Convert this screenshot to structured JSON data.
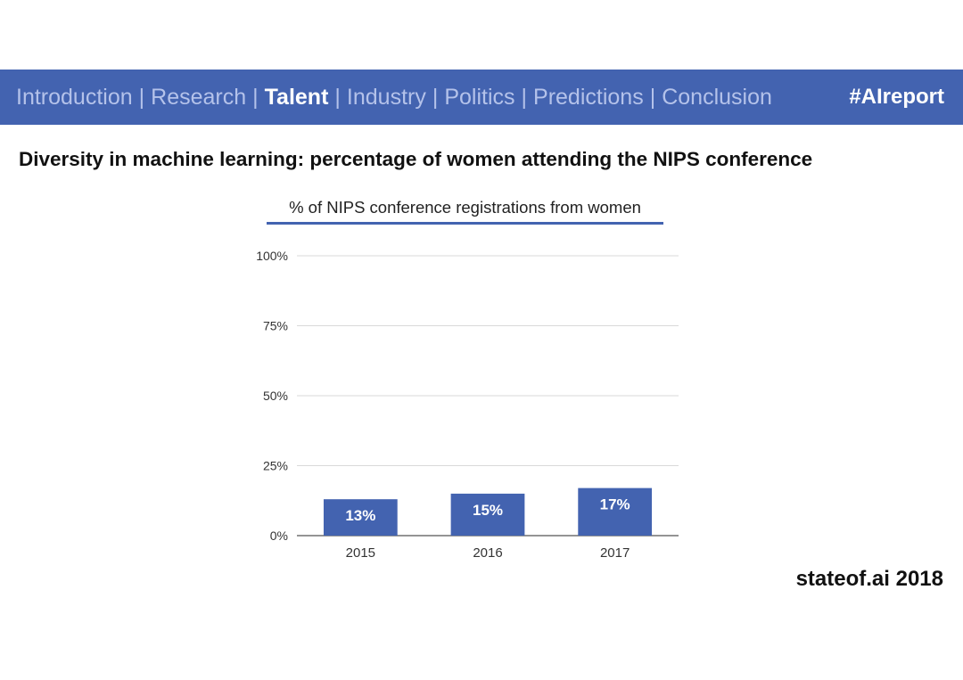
{
  "nav": {
    "items": [
      {
        "label": "Introduction",
        "active": false
      },
      {
        "label": "Research",
        "active": false
      },
      {
        "label": "Talent",
        "active": true
      },
      {
        "label": "Industry",
        "active": false
      },
      {
        "label": "Politics",
        "active": false
      },
      {
        "label": "Predictions",
        "active": false
      },
      {
        "label": "Conclusion",
        "active": false
      }
    ],
    "separator": "|",
    "hashtag": "#AIreport"
  },
  "slide": {
    "title": "Diversity in machine learning: percentage of women attending the NIPS conference",
    "footer": "stateof.ai 2018"
  },
  "colors": {
    "bar": "#4363b0",
    "nav_inactive": "#b4c2ea",
    "grid": "#d9d9d9",
    "axis": "#555555"
  },
  "chart_data": {
    "type": "bar",
    "title": "% of NIPS conference registrations from women",
    "categories": [
      "2015",
      "2016",
      "2017"
    ],
    "values": [
      13,
      15,
      17
    ],
    "value_labels": [
      "13%",
      "15%",
      "17%"
    ],
    "ylim": [
      0,
      100
    ],
    "yticks": [
      0,
      25,
      50,
      75,
      100
    ],
    "ytick_labels": [
      "0%",
      "25%",
      "50%",
      "75%",
      "100%"
    ],
    "xlabel": "",
    "ylabel": "",
    "grid": true,
    "legend": "none"
  }
}
